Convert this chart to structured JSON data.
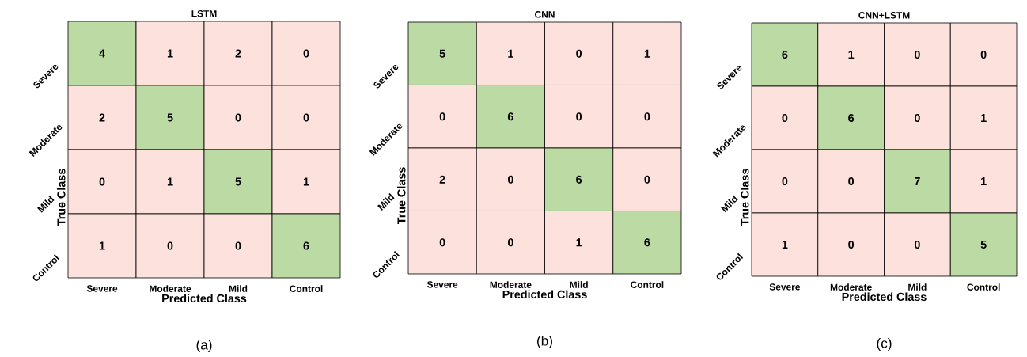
{
  "chart_data": [
    {
      "type": "heatmap",
      "data_labels": true,
      "title": "LSTM",
      "xlabel": "Predicted Class",
      "ylabel": "True Class",
      "categories": [
        "Severe",
        "Moderate",
        "Mild",
        "Control"
      ],
      "y_categories": [
        "Severe",
        "Moderate",
        "Mild",
        "Control"
      ],
      "cells": [
        [
          4,
          1,
          2,
          0
        ],
        [
          2,
          5,
          0,
          0
        ],
        [
          0,
          1,
          5,
          1
        ],
        [
          1,
          0,
          0,
          6
        ]
      ],
      "colors": [
        [
          "#bcdaa3",
          "#fce1dc",
          "#fce1dc",
          "#fce1dc"
        ],
        [
          "#fce1dc",
          "#bcdaa3",
          "#fce1dc",
          "#fce1dc"
        ],
        [
          "#fce1dc",
          "#fce1dc",
          "#bcdaa3",
          "#fce1dc"
        ],
        [
          "#fce1dc",
          "#fce1dc",
          "#fce1dc",
          "#bcdaa3"
        ]
      ],
      "annotations": [
        "(a)"
      ]
    },
    {
      "type": "heatmap",
      "data_labels": true,
      "title": "CNN",
      "xlabel": "Predicted Class",
      "ylabel": "True Class",
      "categories": [
        "Severe",
        "Moderate",
        "Mild",
        "Control"
      ],
      "y_categories": [
        "Severe",
        "Moderate",
        "Mild",
        "Control"
      ],
      "cells": [
        [
          5,
          1,
          0,
          1
        ],
        [
          0,
          6,
          0,
          0
        ],
        [
          2,
          0,
          6,
          0
        ],
        [
          0,
          0,
          1,
          6
        ]
      ],
      "colors": [
        [
          "#bcdaa3",
          "#fce1dc",
          "#fce1dc",
          "#fce1dc"
        ],
        [
          "#fce1dc",
          "#bcdaa3",
          "#fce1dc",
          "#fce1dc"
        ],
        [
          "#fce1dc",
          "#fce1dc",
          "#bcdaa3",
          "#fce1dc"
        ],
        [
          "#fce1dc",
          "#fce1dc",
          "#fce1dc",
          "#bcdaa3"
        ]
      ],
      "annotations": [
        "(b)"
      ]
    },
    {
      "type": "heatmap",
      "data_labels": true,
      "title": "CNN+LSTM",
      "xlabel": "Predicted Class",
      "ylabel": "True Class",
      "categories": [
        "Severe",
        "Moderate",
        "Mild",
        "Control"
      ],
      "y_categories": [
        "Severe",
        "Moderate",
        "Mild",
        "Control"
      ],
      "cells": [
        [
          6,
          1,
          0,
          0
        ],
        [
          0,
          6,
          0,
          1
        ],
        [
          0,
          0,
          7,
          1
        ],
        [
          1,
          0,
          0,
          5
        ]
      ],
      "colors": [
        [
          "#bcdaa3",
          "#fce1dc",
          "#fce1dc",
          "#fce1dc"
        ],
        [
          "#fce1dc",
          "#bcdaa3",
          "#fce1dc",
          "#fce1dc"
        ],
        [
          "#fce1dc",
          "#fce1dc",
          "#bcdaa3",
          "#fce1dc"
        ],
        [
          "#fce1dc",
          "#fce1dc",
          "#fce1dc",
          "#bcdaa3"
        ]
      ],
      "annotations": [
        "(c)"
      ]
    }
  ]
}
